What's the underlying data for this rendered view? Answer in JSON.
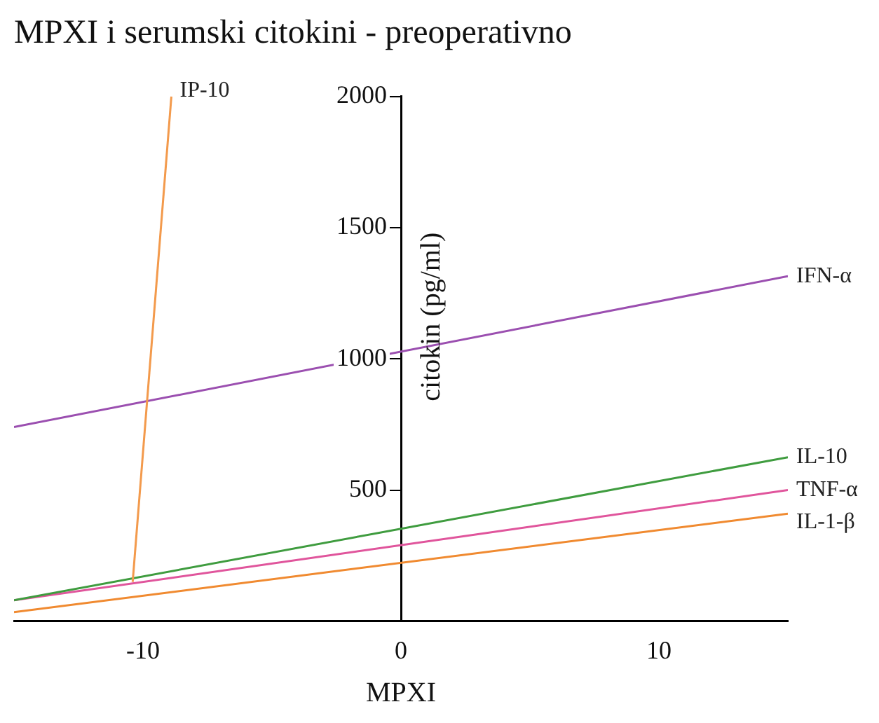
{
  "chart_data": {
    "type": "line",
    "title": "MPXI i serumski citokini - preoperativno",
    "xlabel": "MPXI",
    "ylabel": "citokin (pg/ml)",
    "xlim": [
      -15,
      15
    ],
    "xticks": [
      -10,
      0,
      10
    ],
    "ylim": [
      0,
      2000
    ],
    "yticks": [
      500,
      1000,
      1500,
      2000
    ],
    "grid": false,
    "legend": false,
    "marker": "none",
    "line_style": "solid",
    "series": [
      {
        "name": "IP-10",
        "color": "#f39a4c",
        "x": [
          -10.4,
          -8.9
        ],
        "values": [
          150,
          2000
        ]
      },
      {
        "name": "IFN-α",
        "color": "#9b4fb0",
        "x": [
          -15,
          15
        ],
        "values": [
          740,
          1315
        ]
      },
      {
        "name": "IL-10",
        "color": "#3f9c3f",
        "x": [
          -15,
          15
        ],
        "values": [
          80,
          625
        ]
      },
      {
        "name": "TNF-α",
        "color": "#e0559c",
        "x": [
          -15,
          15
        ],
        "values": [
          80,
          500
        ]
      },
      {
        "name": "IL-1-β",
        "color": "#f08a30",
        "x": [
          -15,
          15
        ],
        "values": [
          35,
          410
        ]
      }
    ]
  }
}
